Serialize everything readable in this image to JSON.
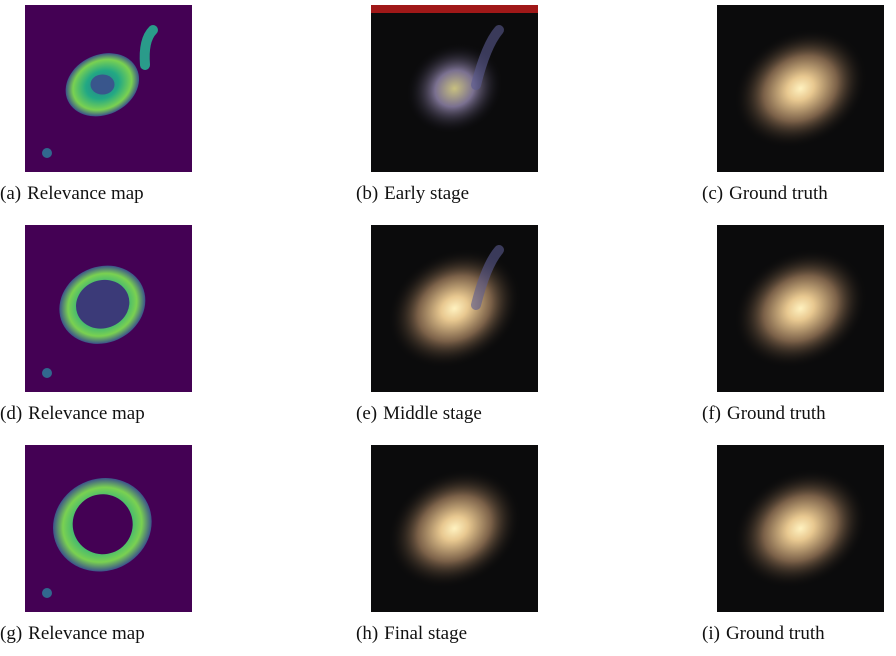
{
  "panels": [
    {
      "label": "(a)",
      "caption": "Relevance map"
    },
    {
      "label": "(b)",
      "caption": "Early stage"
    },
    {
      "label": "(c)",
      "caption": "Ground truth"
    },
    {
      "label": "(d)",
      "caption": "Relevance map"
    },
    {
      "label": "(e)",
      "caption": "Middle stage"
    },
    {
      "label": "(f)",
      "caption": "Ground truth"
    },
    {
      "label": "(g)",
      "caption": "Relevance map"
    },
    {
      "label": "(h)",
      "caption": "Final stage"
    },
    {
      "label": "(i)",
      "caption": "Ground truth"
    }
  ]
}
